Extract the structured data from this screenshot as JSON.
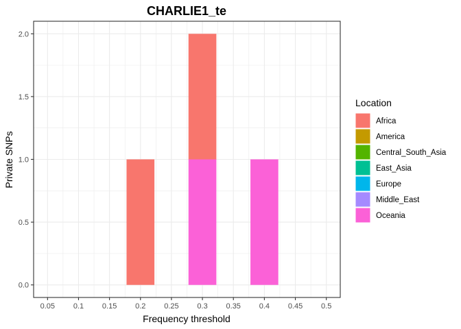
{
  "chart_data": {
    "type": "bar",
    "title": "CHARLIE1_te",
    "xlabel": "Frequency threshold",
    "ylabel": "Private SNPs",
    "categories": [
      "0.05",
      "0.1",
      "0.15",
      "0.2",
      "0.25",
      "0.3",
      "0.35",
      "0.4",
      "0.45",
      "0.5"
    ],
    "y_ticks": [
      "0.0",
      "0.5",
      "1.0",
      "1.5",
      "2.0"
    ],
    "ylim": [
      0,
      2
    ],
    "stacked": true,
    "grid": true,
    "legend_position": "right",
    "legend_title": "Location",
    "series": [
      {
        "name": "Africa",
        "color": "#F8766D",
        "values": [
          0,
          0,
          0,
          1,
          0,
          1,
          0,
          0,
          0,
          0
        ]
      },
      {
        "name": "America",
        "color": "#C49A00",
        "values": [
          0,
          0,
          0,
          0,
          0,
          0,
          0,
          0,
          0,
          0
        ]
      },
      {
        "name": "Central_South_Asia",
        "color": "#53B400",
        "values": [
          0,
          0,
          0,
          0,
          0,
          0,
          0,
          0,
          0,
          0
        ]
      },
      {
        "name": "East_Asia",
        "color": "#00C094",
        "values": [
          0,
          0,
          0,
          0,
          0,
          0,
          0,
          0,
          0,
          0
        ]
      },
      {
        "name": "Europe",
        "color": "#00B6EB",
        "values": [
          0,
          0,
          0,
          0,
          0,
          0,
          0,
          0,
          0,
          0
        ]
      },
      {
        "name": "Middle_East",
        "color": "#A58AFF",
        "values": [
          0,
          0,
          0,
          0,
          0,
          0,
          0,
          0,
          0,
          0
        ]
      },
      {
        "name": "Oceania",
        "color": "#FB61D7",
        "values": [
          0,
          0,
          0,
          0,
          0,
          1,
          0,
          1,
          0,
          0
        ]
      }
    ]
  }
}
